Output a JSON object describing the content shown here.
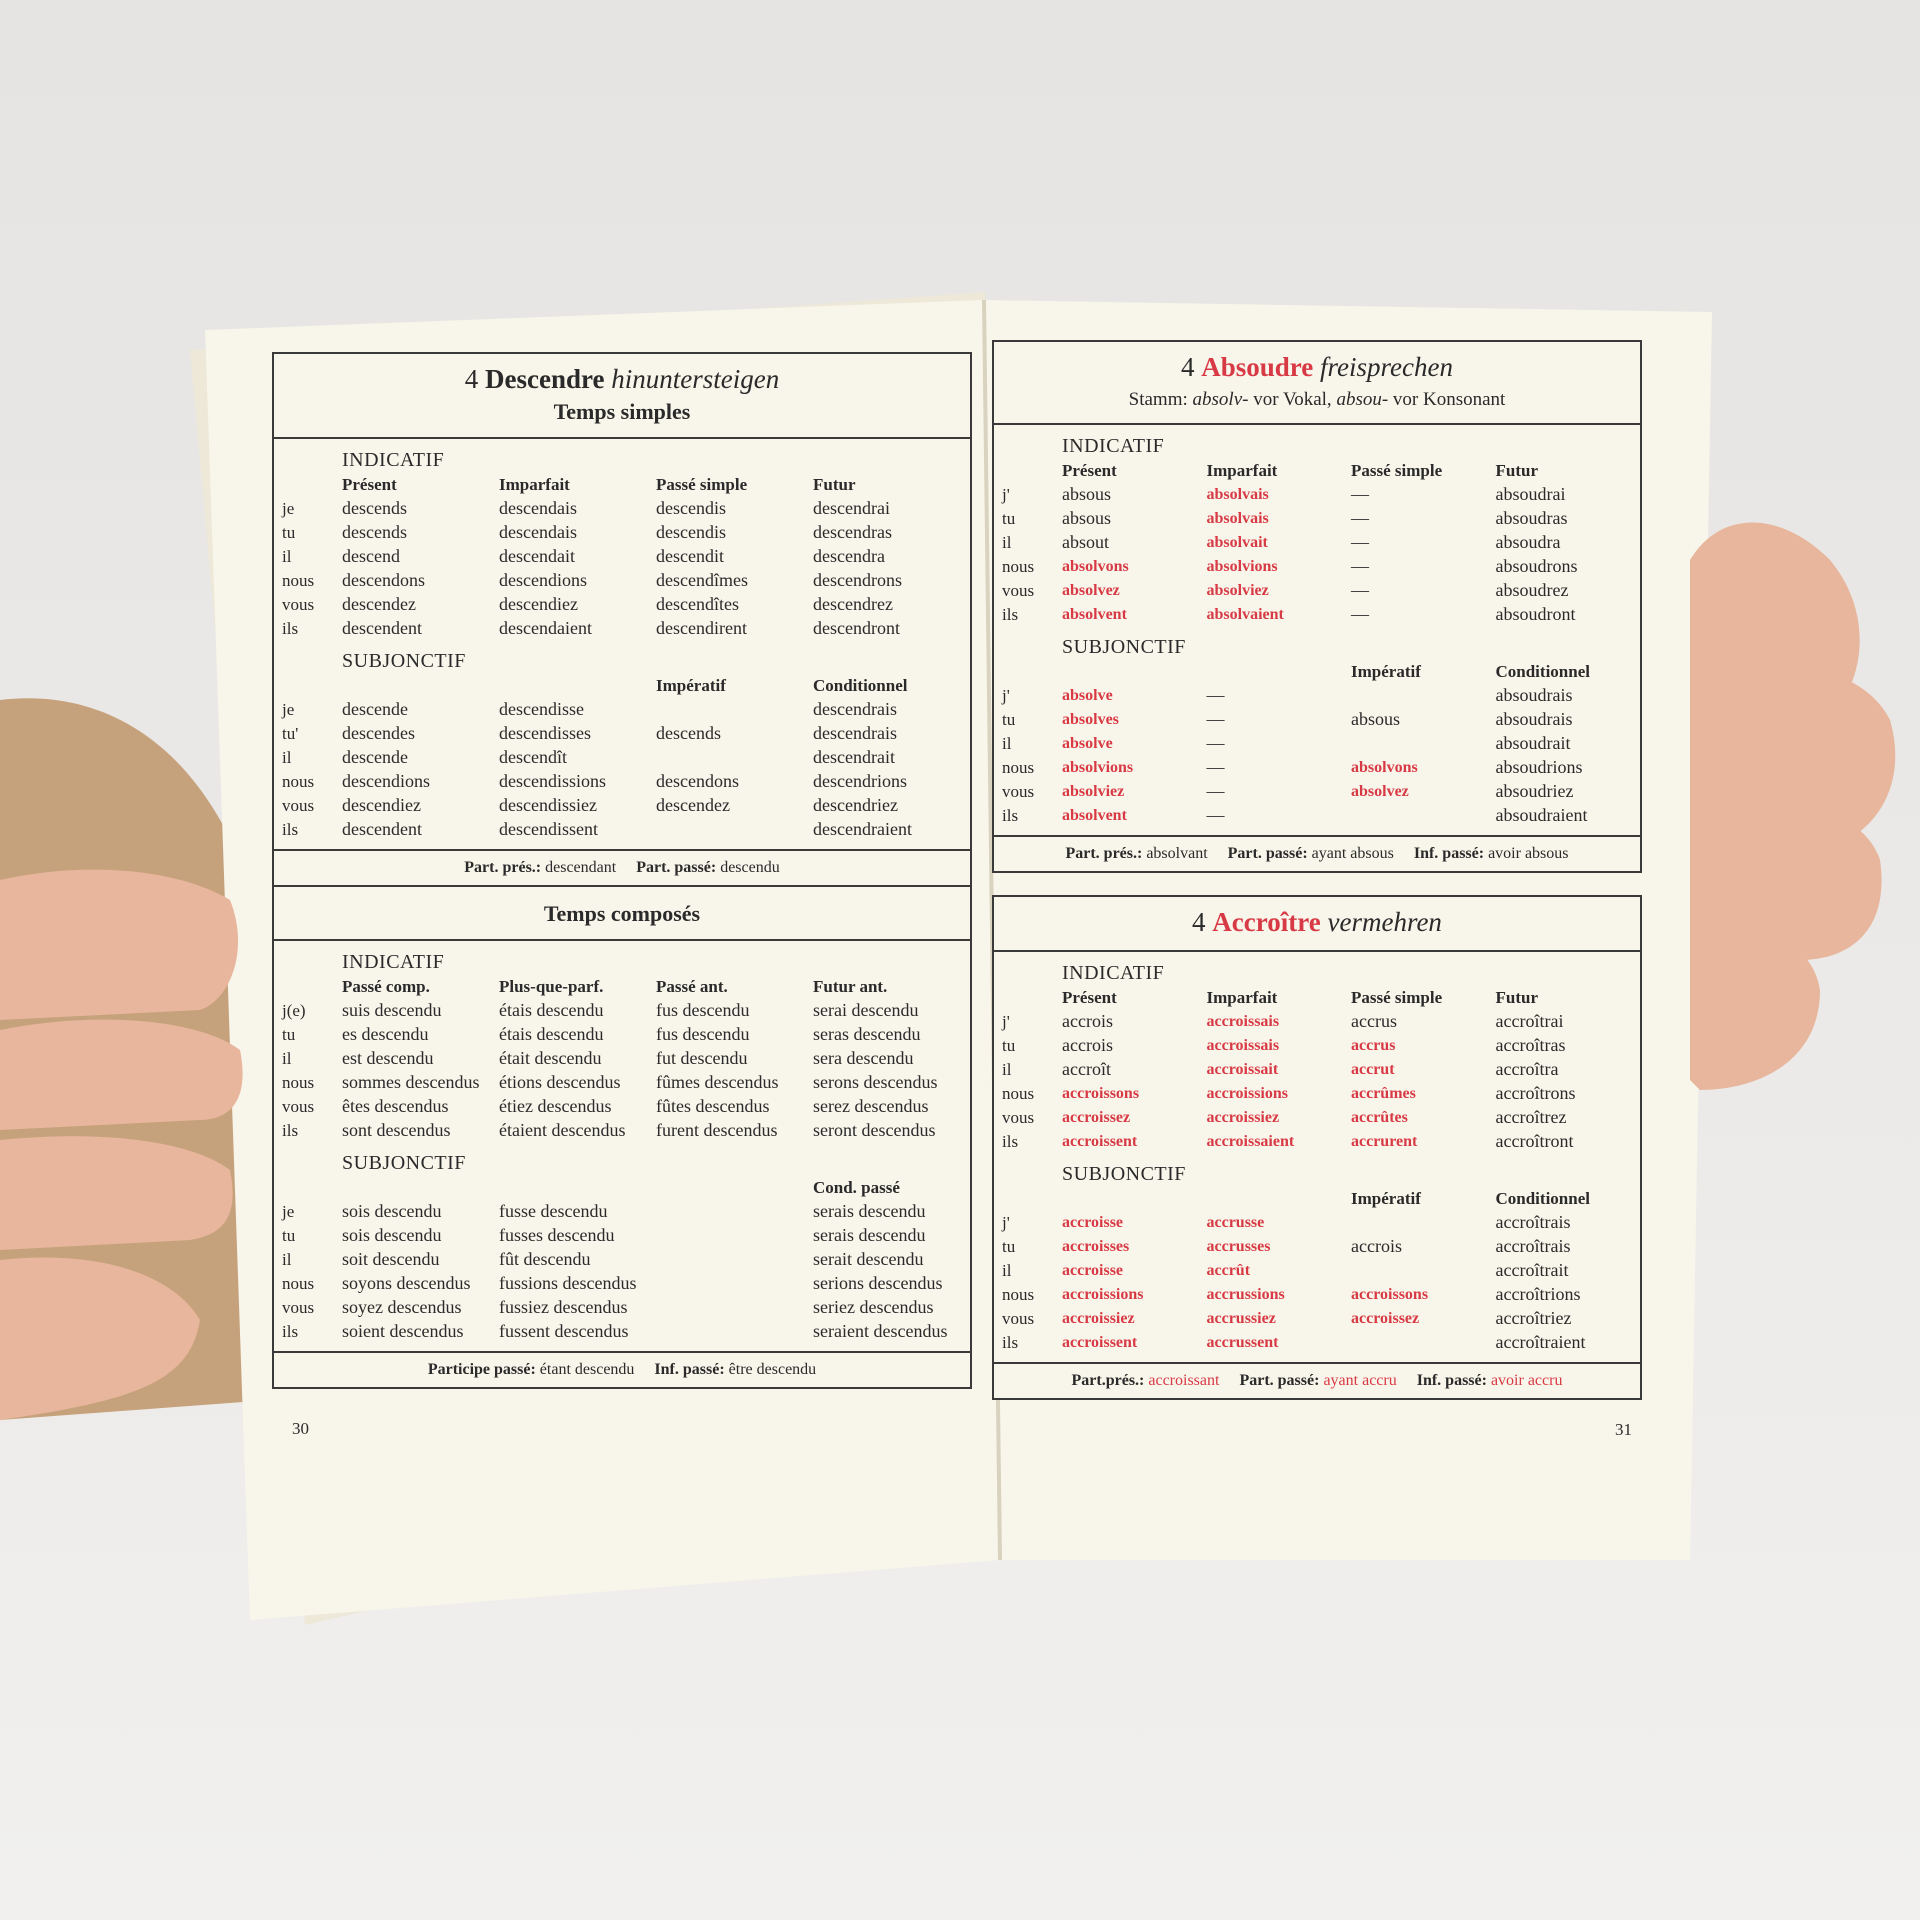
{
  "colors": {
    "accent_red": "#d83a45",
    "paper": "#f8f5ea",
    "skin": "#e8b69c",
    "sleeve": "#c6a27c"
  },
  "left_page": {
    "page_number": "30",
    "verb": {
      "number": "4",
      "name": "Descendre",
      "translation": "hinuntersteigen"
    },
    "sections": [
      {
        "title": "Temps simples",
        "moods": [
          {
            "name": "INDICATIF",
            "pronouns": [
              "je",
              "tu",
              "il",
              "nous",
              "vous",
              "ils"
            ],
            "columns": [
              {
                "header": "Présent",
                "items": [
                  "descends",
                  "descends",
                  "descend",
                  "descendons",
                  "descendez",
                  "descendent"
                ]
              },
              {
                "header": "Imparfait",
                "items": [
                  "descendais",
                  "descendais",
                  "descendait",
                  "descendions",
                  "descendiez",
                  "descendaient"
                ]
              },
              {
                "header": "Passé simple",
                "items": [
                  "descendis",
                  "descendis",
                  "descendit",
                  "descendîmes",
                  "descendîtes",
                  "descendirent"
                ]
              },
              {
                "header": "Futur",
                "items": [
                  "descendrai",
                  "descendras",
                  "descendra",
                  "descendrons",
                  "descendrez",
                  "descendront"
                ]
              }
            ]
          },
          {
            "name": "SUBJONCTIF",
            "pronouns": [
              "je",
              "tu'",
              "il",
              "nous",
              "vous",
              "ils"
            ],
            "columns": [
              {
                "header": "",
                "items": [
                  "descende",
                  "descendes",
                  "descende",
                  "descendions",
                  "descendiez",
                  "descendent"
                ]
              },
              {
                "header": "",
                "items": [
                  "descendisse",
                  "descendisses",
                  "descendît",
                  "descendissions",
                  "descendissiez",
                  "descendissent"
                ]
              },
              {
                "header": "Impératif",
                "items": [
                  "",
                  "descends",
                  "",
                  "descendons",
                  "descendez",
                  ""
                ]
              },
              {
                "header": "Conditionnel",
                "items": [
                  "descendrais",
                  "descendrais",
                  "descendrait",
                  "descendrions",
                  "descendriez",
                  "descendraient"
                ]
              }
            ]
          }
        ],
        "footer": [
          {
            "label": "Part. prés.:",
            "value": "descendant"
          },
          {
            "label": "Part. passé:",
            "value": "descendu"
          }
        ]
      },
      {
        "title": "Temps composés",
        "moods": [
          {
            "name": "INDICATIF",
            "pronouns": [
              "j(e)",
              "tu",
              "il",
              "nous",
              "vous",
              "ils"
            ],
            "columns": [
              {
                "header": "Passé comp.",
                "items": [
                  "suis descendu",
                  "es descendu",
                  "est descendu",
                  "sommes descendus",
                  "êtes descendus",
                  "sont descendus"
                ]
              },
              {
                "header": "Plus-que-parf.",
                "items": [
                  "étais descendu",
                  "étais descendu",
                  "était descendu",
                  "étions descendus",
                  "étiez descendus",
                  "étaient descendus"
                ]
              },
              {
                "header": "Passé ant.",
                "items": [
                  "fus descendu",
                  "fus descendu",
                  "fut descendu",
                  "fûmes descendus",
                  "fûtes descendus",
                  "furent descendus"
                ]
              },
              {
                "header": "Futur ant.",
                "items": [
                  "serai descendu",
                  "seras descendu",
                  "sera descendu",
                  "serons descendus",
                  "serez descendus",
                  "seront descendus"
                ]
              }
            ]
          },
          {
            "name": "SUBJONCTIF",
            "pronouns": [
              "je",
              "tu",
              "il",
              "nous",
              "vous",
              "ils"
            ],
            "columns": [
              {
                "header": "",
                "items": [
                  "sois descendu",
                  "sois descendu",
                  "soit descendu",
                  "soyons descendus",
                  "soyez descendus",
                  "soient descendus"
                ]
              },
              {
                "header": "",
                "items": [
                  "fusse descendu",
                  "fusses descendu",
                  "fût descendu",
                  "fussions descendus",
                  "fussiez descendus",
                  "fussent descendus"
                ]
              },
              {
                "header": "",
                "items": [
                  "",
                  "",
                  "",
                  "",
                  "",
                  ""
                ]
              },
              {
                "header": "Cond. passé",
                "items": [
                  "serais descendu",
                  "serais descendu",
                  "serait descendu",
                  "serions descendus",
                  "seriez descendus",
                  "seraient descendus"
                ]
              }
            ]
          }
        ],
        "footer": [
          {
            "label": "Participe passé:",
            "value": "étant descendu"
          },
          {
            "label": "Inf. passé:",
            "value": "être descendu"
          }
        ]
      }
    ]
  },
  "right_page": {
    "page_number": "31",
    "sections": [
      {
        "verb": {
          "number": "4",
          "name": "Absoudre",
          "translation": "freisprechen"
        },
        "stem_note": {
          "label": "Stamm:",
          "a": "absolv-",
          "a_text": "vor Vokal,",
          "b": "absou-",
          "b_text": "vor Konsonant"
        },
        "moods": [
          {
            "name": "INDICATIF",
            "pronouns": [
              "j'",
              "tu",
              "il",
              "nous",
              "vous",
              "ils"
            ],
            "columns": [
              {
                "header": "Présent",
                "items": [
                  "absous",
                  "absous",
                  "absout",
                  "absolvons",
                  "absolvez",
                  "absolvent"
                ],
                "red": [
                  0,
                  0,
                  0,
                  1,
                  1,
                  1
                ]
              },
              {
                "header": "Imparfait",
                "items": [
                  "absolvais",
                  "absolvais",
                  "absolvait",
                  "absolvions",
                  "absolviez",
                  "absolvaient"
                ],
                "red": [
                  1,
                  1,
                  1,
                  1,
                  1,
                  1
                ]
              },
              {
                "header": "Passé simple",
                "items": [
                  "—",
                  "—",
                  "—",
                  "—",
                  "—",
                  "—"
                ],
                "red": [
                  0,
                  0,
                  0,
                  0,
                  0,
                  0
                ]
              },
              {
                "header": "Futur",
                "items": [
                  "absoudrai",
                  "absoudras",
                  "absoudra",
                  "absoudrons",
                  "absoudrez",
                  "absoudront"
                ],
                "red": [
                  0,
                  0,
                  0,
                  0,
                  0,
                  0
                ]
              }
            ]
          },
          {
            "name": "SUBJONCTIF",
            "pronouns": [
              "j'",
              "tu",
              "il",
              "nous",
              "vous",
              "ils"
            ],
            "columns": [
              {
                "header": "",
                "items": [
                  "absolve",
                  "absolves",
                  "absolve",
                  "absolvions",
                  "absolviez",
                  "absolvent"
                ],
                "red": [
                  1,
                  1,
                  1,
                  1,
                  1,
                  1
                ]
              },
              {
                "header": "",
                "items": [
                  "—",
                  "—",
                  "—",
                  "—",
                  "—",
                  "—"
                ],
                "red": [
                  0,
                  0,
                  0,
                  0,
                  0,
                  0
                ]
              },
              {
                "header": "Impératif",
                "items": [
                  "",
                  "absous",
                  "",
                  "absolvons",
                  "absolvez",
                  ""
                ],
                "red": [
                  0,
                  0,
                  0,
                  1,
                  1,
                  0
                ]
              },
              {
                "header": "Conditionnel",
                "items": [
                  "absoudrais",
                  "absoudrais",
                  "absoudrait",
                  "absoudrions",
                  "absoudriez",
                  "absoudraient"
                ],
                "red": [
                  0,
                  0,
                  0,
                  0,
                  0,
                  0
                ]
              }
            ]
          }
        ],
        "footer": [
          {
            "label": "Part. prés.:",
            "value": "absolvant",
            "red": false
          },
          {
            "label": "Part. passé:",
            "value": "ayant absous",
            "red": false
          },
          {
            "label": "Inf. passé:",
            "value": "avoir absous",
            "red": false
          }
        ]
      },
      {
        "verb": {
          "number": "4",
          "name": "Accroître",
          "translation": "vermehren"
        },
        "moods": [
          {
            "name": "INDICATIF",
            "pronouns": [
              "j'",
              "tu",
              "il",
              "nous",
              "vous",
              "ils"
            ],
            "columns": [
              {
                "header": "Présent",
                "items": [
                  "accrois",
                  "accrois",
                  "accroît",
                  "accroissons",
                  "accroissez",
                  "accroissent"
                ],
                "red": [
                  0,
                  0,
                  0,
                  1,
                  1,
                  1
                ]
              },
              {
                "header": "Imparfait",
                "items": [
                  "accroissais",
                  "accroissais",
                  "accroissait",
                  "accroissions",
                  "accroissiez",
                  "accroissaient"
                ],
                "red": [
                  1,
                  1,
                  1,
                  1,
                  1,
                  1
                ]
              },
              {
                "header": "Passé simple",
                "items": [
                  "accrus",
                  "accrus",
                  "accrut",
                  "accrûmes",
                  "accrûtes",
                  "accrurent"
                ],
                "red": [
                  0,
                  1,
                  1,
                  1,
                  1,
                  1
                ]
              },
              {
                "header": "Futur",
                "items": [
                  "accroîtrai",
                  "accroîtras",
                  "accroîtra",
                  "accroîtrons",
                  "accroîtrez",
                  "accroîtront"
                ],
                "red": [
                  0,
                  0,
                  0,
                  0,
                  0,
                  0
                ]
              }
            ]
          },
          {
            "name": "SUBJONCTIF",
            "pronouns": [
              "j'",
              "tu",
              "il",
              "nous",
              "vous",
              "ils"
            ],
            "columns": [
              {
                "header": "",
                "items": [
                  "accroisse",
                  "accroisses",
                  "accroisse",
                  "accroissions",
                  "accroissiez",
                  "accroissent"
                ],
                "red": [
                  1,
                  1,
                  1,
                  1,
                  1,
                  1
                ]
              },
              {
                "header": "",
                "items": [
                  "accrusse",
                  "accrusses",
                  "accrût",
                  "accrussions",
                  "accrussiez",
                  "accrussent"
                ],
                "red": [
                  1,
                  1,
                  1,
                  1,
                  1,
                  1
                ]
              },
              {
                "header": "Impératif",
                "items": [
                  "",
                  "accrois",
                  "",
                  "accroissons",
                  "accroissez",
                  ""
                ],
                "red": [
                  0,
                  0,
                  0,
                  1,
                  1,
                  0
                ]
              },
              {
                "header": "Conditionnel",
                "items": [
                  "accroîtrais",
                  "accroîtrais",
                  "accroîtrait",
                  "accroîtrions",
                  "accroîtriez",
                  "accroîtraient"
                ],
                "red": [
                  0,
                  0,
                  0,
                  0,
                  0,
                  0
                ]
              }
            ]
          }
        ],
        "footer": [
          {
            "label": "Part.prés.:",
            "value": "accroissant",
            "red": true
          },
          {
            "label": "Part. passé:",
            "value": "ayant accru",
            "red": true
          },
          {
            "label": "Inf. passé:",
            "value": "avoir accru",
            "red": true
          }
        ]
      }
    ]
  }
}
